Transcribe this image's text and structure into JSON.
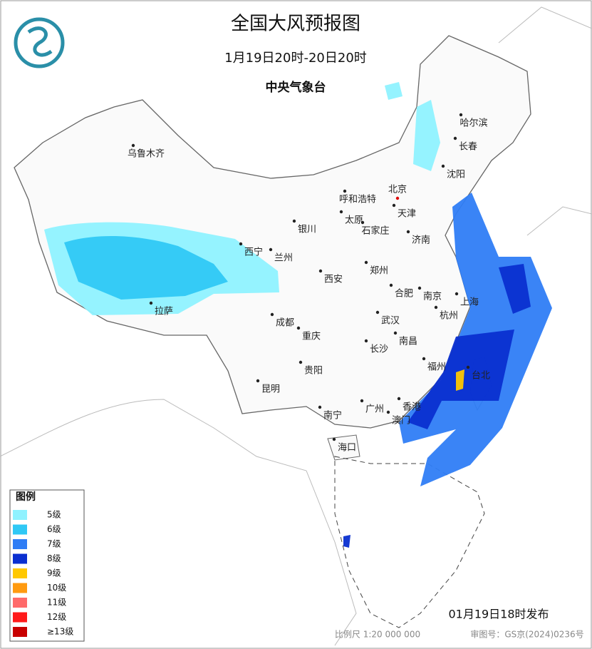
{
  "header": {
    "title": "全国大风预报图",
    "period": "1月19日20时-20日20时",
    "issuer": "中央气象台"
  },
  "cities": [
    "乌鲁木齐",
    "哈尔滨",
    "长春",
    "沈阳",
    "北京",
    "呼和浩特",
    "天津",
    "太原",
    "石家庄",
    "银川",
    "济南",
    "西宁",
    "兰州",
    "郑州",
    "西安",
    "合肥",
    "南京",
    "上海",
    "拉萨",
    "杭州",
    "成都",
    "武汉",
    "重庆",
    "南昌",
    "长沙",
    "福州",
    "台北",
    "贵阳",
    "昆明",
    "南宁",
    "广州",
    "香港",
    "澳门",
    "海口"
  ],
  "legend": {
    "title": "图例",
    "items": [
      {
        "label": "5级",
        "color": "#8ff2ff"
      },
      {
        "label": "6级",
        "color": "#2fc8f5"
      },
      {
        "label": "7级",
        "color": "#2f7df5"
      },
      {
        "label": "8级",
        "color": "#0a2fd0"
      },
      {
        "label": "9级",
        "color": "#ffc800"
      },
      {
        "label": "10级",
        "color": "#ff9a10"
      },
      {
        "label": "11级",
        "color": "#ff6a6a"
      },
      {
        "label": "12级",
        "color": "#ff1a1a"
      },
      {
        "label": "≥13级",
        "color": "#c80000"
      }
    ]
  },
  "footer": {
    "issued": "01月19日18时发布",
    "scale": "比例尺 1:20 000 000",
    "map_number": "审图号：GS京(2024)0236号"
  }
}
